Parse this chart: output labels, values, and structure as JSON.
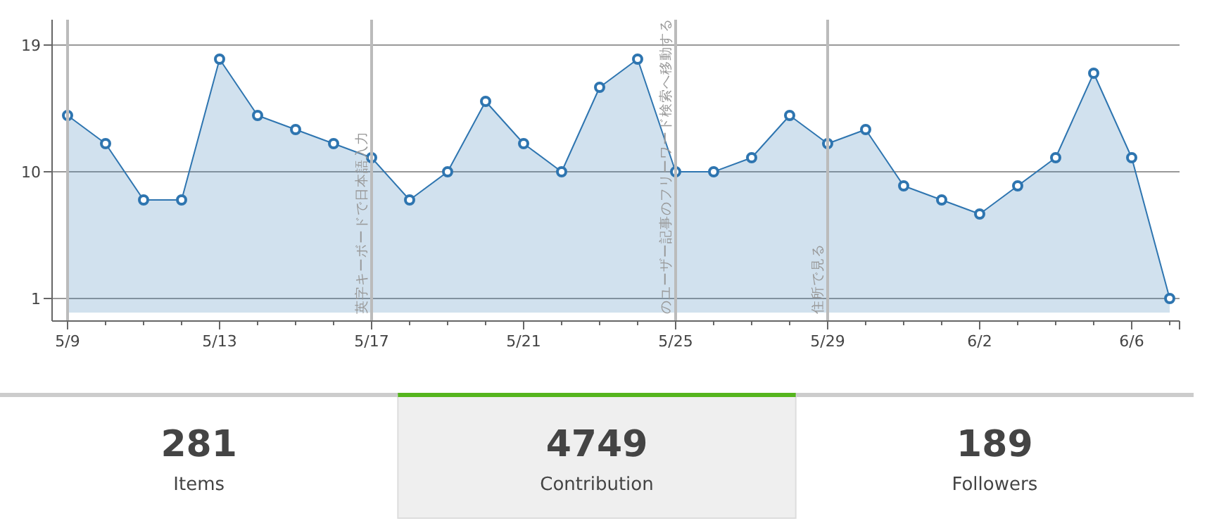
{
  "chart_data": [
    {
      "type": "area",
      "categories": [
        "5/9",
        null,
        null,
        null,
        "5/13",
        null,
        null,
        null,
        "5/17",
        null,
        null,
        null,
        "5/21",
        null,
        null,
        null,
        "5/25",
        null,
        null,
        null,
        "5/29",
        null,
        null,
        null,
        "6/2",
        null,
        null,
        null,
        "6/6",
        null
      ],
      "series": [
        {
          "color": "#2e75b0",
          "values": [
            14,
            12,
            8,
            8,
            18,
            14,
            13,
            12,
            11,
            8,
            10,
            15,
            12,
            10,
            16,
            18,
            10,
            10,
            11,
            14,
            12,
            13,
            9,
            8,
            7,
            9,
            11,
            17,
            11,
            1
          ]
        }
      ],
      "ylim": [
        -0.6,
        20.8
      ],
      "yticks": [
        1,
        10,
        19
      ],
      "grid": "y",
      "marker": "circle",
      "ref_lines": [
        {
          "axis": "x",
          "value": "5/9",
          "color": "#bbbbbb"
        },
        {
          "axis": "x",
          "value": "5/17",
          "label": "英字キーボードで日本語入力",
          "color": "#bbbbbb"
        },
        {
          "axis": "x",
          "value": "5/25",
          "label": "のユーザー記事のフリーワード検索へ移動する",
          "color": "#bbbbbb"
        },
        {
          "axis": "x",
          "value": "5/29",
          "label": "住所で見る",
          "color": "#bbbbbb"
        }
      ]
    },
    {
      "type": "other",
      "categories": [
        "Items",
        "Contribution",
        "Followers"
      ],
      "values": [
        281,
        4749,
        189
      ],
      "data_labels": true
    }
  ]
}
